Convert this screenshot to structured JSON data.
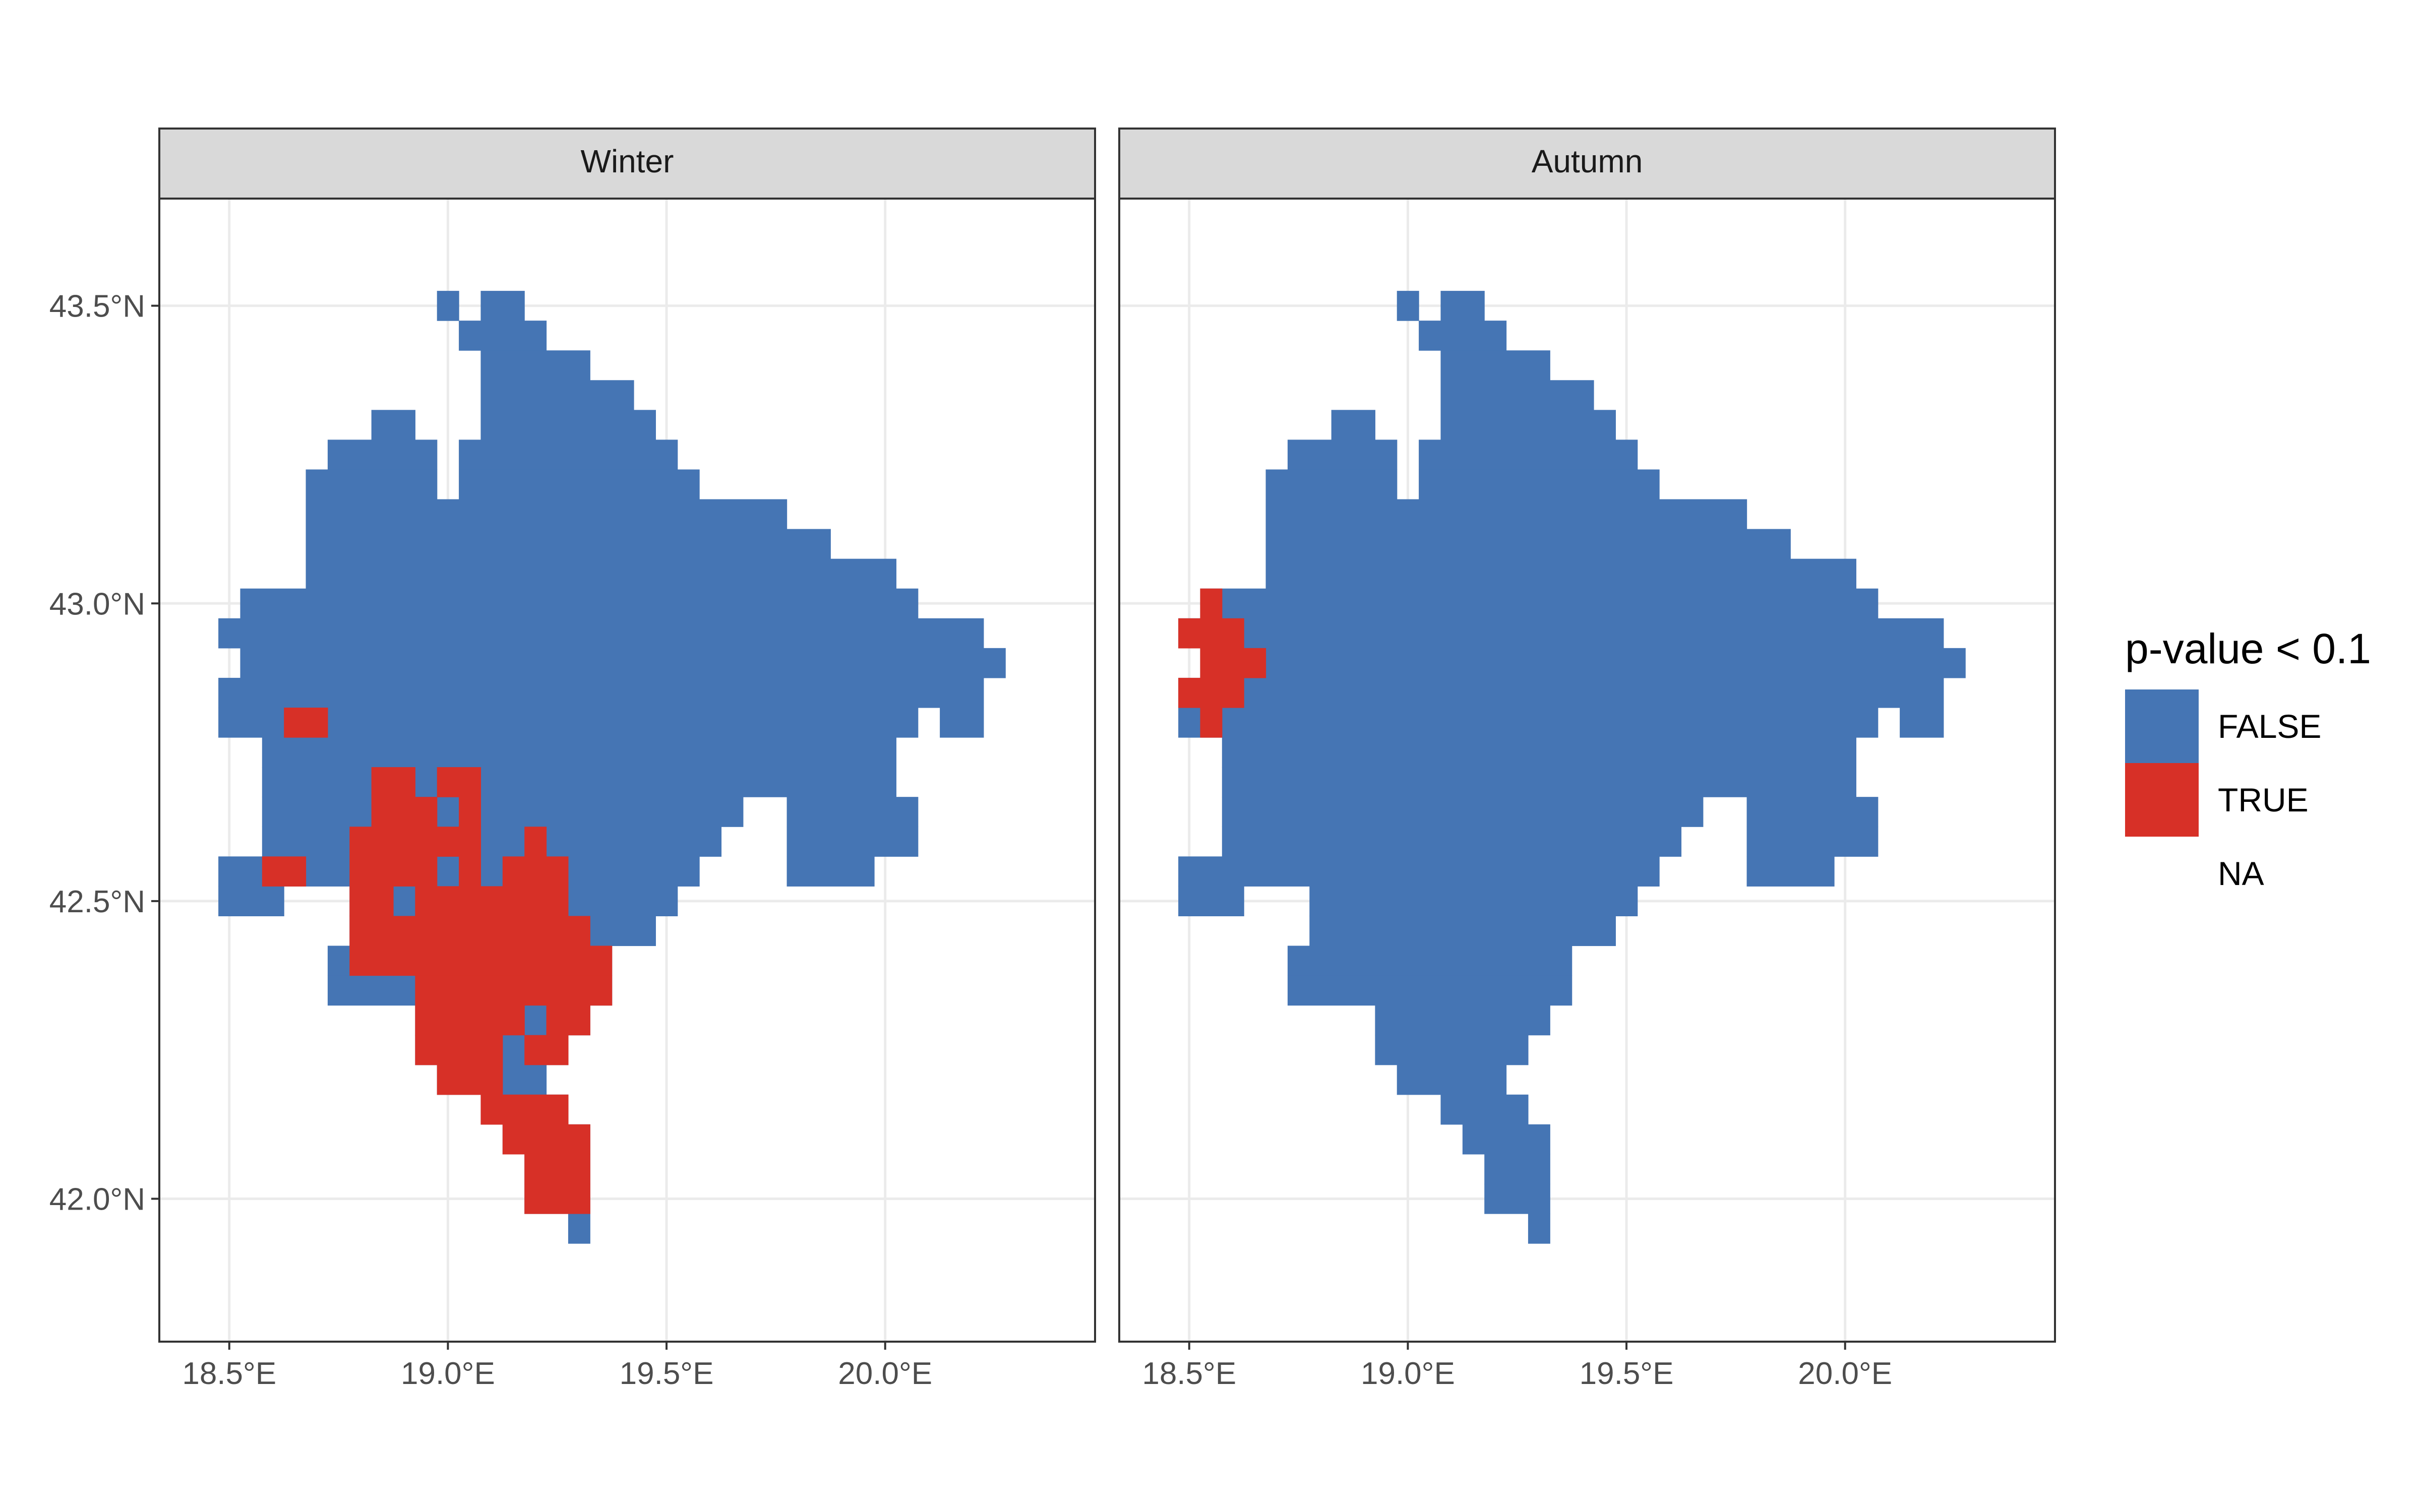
{
  "chart_data": {
    "type": "heatmap",
    "title": "",
    "xlabel": "",
    "ylabel": "",
    "xlim": [
      18.34,
      20.48
    ],
    "ylim": [
      41.76,
      43.68
    ],
    "x_ticks": [
      {
        "value": 18.5,
        "label": "18.5°E"
      },
      {
        "value": 19.0,
        "label": "19.0°E"
      },
      {
        "value": 19.5,
        "label": "19.5°E"
      },
      {
        "value": 20.0,
        "label": "20.0°E"
      }
    ],
    "y_ticks": [
      {
        "value": 42.0,
        "label": "42.0°N"
      },
      {
        "value": 42.5,
        "label": "42.5°N"
      },
      {
        "value": 43.0,
        "label": "43.0°N"
      },
      {
        "value": 43.5,
        "label": "43.5°N"
      }
    ],
    "grid": true,
    "cell_size_deg": 0.05,
    "legend": {
      "title": "p-value < 0.1",
      "position": "right",
      "entries": [
        {
          "label": "FALSE",
          "color": "#4575b4"
        },
        {
          "label": "TRUE",
          "color": "#d73027"
        },
        {
          "label": "NA",
          "color": "#ffffff"
        }
      ]
    },
    "panels": [
      {
        "facet": "Winter",
        "region_rows": [
          {
            "lat": 43.5,
            "lon_ranges": [
              [
                19.0,
                19.0
              ],
              [
                19.1,
                19.15
              ]
            ]
          },
          {
            "lat": 43.45,
            "lon_ranges": [
              [
                19.05,
                19.2
              ]
            ]
          },
          {
            "lat": 43.4,
            "lon_ranges": [
              [
                19.1,
                19.3
              ]
            ]
          },
          {
            "lat": 43.35,
            "lon_ranges": [
              [
                19.1,
                19.4
              ]
            ]
          },
          {
            "lat": 43.3,
            "lon_ranges": [
              [
                18.85,
                18.9
              ],
              [
                19.1,
                19.45
              ]
            ]
          },
          {
            "lat": 43.25,
            "lon_ranges": [
              [
                18.75,
                18.95
              ],
              [
                19.05,
                19.5
              ]
            ]
          },
          {
            "lat": 43.2,
            "lon_ranges": [
              [
                18.7,
                18.95
              ],
              [
                19.05,
                19.55
              ]
            ]
          },
          {
            "lat": 43.15,
            "lon_ranges": [
              [
                18.7,
                19.75
              ]
            ]
          },
          {
            "lat": 43.1,
            "lon_ranges": [
              [
                18.7,
                19.85
              ]
            ]
          },
          {
            "lat": 43.05,
            "lon_ranges": [
              [
                18.7,
                20.0
              ]
            ]
          },
          {
            "lat": 43.0,
            "lon_ranges": [
              [
                18.55,
                20.05
              ]
            ]
          },
          {
            "lat": 42.95,
            "lon_ranges": [
              [
                18.5,
                20.2
              ]
            ]
          },
          {
            "lat": 42.9,
            "lon_ranges": [
              [
                18.55,
                20.25
              ]
            ]
          },
          {
            "lat": 42.85,
            "lon_ranges": [
              [
                18.5,
                20.2
              ]
            ]
          },
          {
            "lat": 42.8,
            "lon_ranges": [
              [
                18.5,
                20.05
              ],
              [
                20.15,
                20.2
              ]
            ]
          },
          {
            "lat": 42.75,
            "lon_ranges": [
              [
                18.6,
                20.0
              ]
            ]
          },
          {
            "lat": 42.7,
            "lon_ranges": [
              [
                18.6,
                20.0
              ]
            ]
          },
          {
            "lat": 42.65,
            "lon_ranges": [
              [
                18.6,
                19.65
              ],
              [
                19.8,
                20.05
              ]
            ]
          },
          {
            "lat": 42.6,
            "lon_ranges": [
              [
                18.6,
                19.6
              ],
              [
                19.8,
                20.05
              ]
            ]
          },
          {
            "lat": 42.55,
            "lon_ranges": [
              [
                18.5,
                18.55
              ],
              [
                18.6,
                19.55
              ],
              [
                19.8,
                19.95
              ]
            ]
          },
          {
            "lat": 42.5,
            "lon_ranges": [
              [
                18.5,
                18.6
              ],
              [
                18.8,
                19.5
              ]
            ]
          },
          {
            "lat": 42.45,
            "lon_ranges": [
              [
                18.8,
                19.45
              ]
            ]
          },
          {
            "lat": 42.4,
            "lon_ranges": [
              [
                18.75,
                19.35
              ]
            ]
          },
          {
            "lat": 42.35,
            "lon_ranges": [
              [
                18.75,
                19.35
              ]
            ]
          },
          {
            "lat": 42.3,
            "lon_ranges": [
              [
                18.95,
                19.3
              ]
            ]
          },
          {
            "lat": 42.25,
            "lon_ranges": [
              [
                18.95,
                19.25
              ]
            ]
          },
          {
            "lat": 42.2,
            "lon_ranges": [
              [
                19.0,
                19.2
              ]
            ]
          },
          {
            "lat": 42.15,
            "lon_ranges": [
              [
                19.1,
                19.25
              ]
            ]
          },
          {
            "lat": 42.1,
            "lon_ranges": [
              [
                19.15,
                19.3
              ]
            ]
          },
          {
            "lat": 42.05,
            "lon_ranges": [
              [
                19.2,
                19.3
              ]
            ]
          },
          {
            "lat": 42.0,
            "lon_ranges": [
              [
                19.2,
                19.3
              ]
            ]
          },
          {
            "lat": 41.95,
            "lon_ranges": [
              [
                19.3,
                19.3
              ]
            ]
          }
        ],
        "true_rows": [
          {
            "lat": 42.8,
            "lon_ranges": [
              [
                18.65,
                18.7
              ]
            ]
          },
          {
            "lat": 42.7,
            "lon_ranges": [
              [
                18.85,
                18.9
              ],
              [
                19.0,
                19.05
              ]
            ]
          },
          {
            "lat": 42.65,
            "lon_ranges": [
              [
                18.85,
                18.95
              ],
              [
                19.05,
                19.05
              ]
            ]
          },
          {
            "lat": 42.6,
            "lon_ranges": [
              [
                18.8,
                19.05
              ],
              [
                19.2,
                19.2
              ]
            ]
          },
          {
            "lat": 42.55,
            "lon_ranges": [
              [
                18.6,
                18.65
              ],
              [
                18.8,
                18.95
              ],
              [
                19.05,
                19.05
              ],
              [
                19.15,
                19.25
              ]
            ]
          },
          {
            "lat": 42.5,
            "lon_ranges": [
              [
                18.8,
                18.85
              ],
              [
                18.95,
                19.25
              ]
            ]
          },
          {
            "lat": 42.45,
            "lon_ranges": [
              [
                18.8,
                19.3
              ]
            ]
          },
          {
            "lat": 42.4,
            "lon_ranges": [
              [
                18.8,
                18.85
              ],
              [
                18.9,
                19.35
              ]
            ]
          },
          {
            "lat": 42.35,
            "lon_ranges": [
              [
                18.95,
                19.35
              ]
            ]
          },
          {
            "lat": 42.3,
            "lon_ranges": [
              [
                18.95,
                19.15
              ],
              [
                19.25,
                19.3
              ]
            ]
          },
          {
            "lat": 42.25,
            "lon_ranges": [
              [
                18.95,
                19.1
              ],
              [
                19.2,
                19.25
              ]
            ]
          },
          {
            "lat": 42.2,
            "lon_ranges": [
              [
                19.0,
                19.1
              ]
            ]
          },
          {
            "lat": 42.15,
            "lon_ranges": [
              [
                19.1,
                19.25
              ]
            ]
          },
          {
            "lat": 42.1,
            "lon_ranges": [
              [
                19.15,
                19.3
              ]
            ]
          },
          {
            "lat": 42.05,
            "lon_ranges": [
              [
                19.2,
                19.3
              ]
            ]
          },
          {
            "lat": 42.0,
            "lon_ranges": [
              [
                19.2,
                19.3
              ]
            ]
          }
        ]
      },
      {
        "facet": "Autumn",
        "region_rows": [
          {
            "lat": 43.5,
            "lon_ranges": [
              [
                19.0,
                19.0
              ],
              [
                19.1,
                19.15
              ]
            ]
          },
          {
            "lat": 43.45,
            "lon_ranges": [
              [
                19.05,
                19.2
              ]
            ]
          },
          {
            "lat": 43.4,
            "lon_ranges": [
              [
                19.1,
                19.3
              ]
            ]
          },
          {
            "lat": 43.35,
            "lon_ranges": [
              [
                19.1,
                19.4
              ]
            ]
          },
          {
            "lat": 43.3,
            "lon_ranges": [
              [
                18.85,
                18.9
              ],
              [
                19.1,
                19.45
              ]
            ]
          },
          {
            "lat": 43.25,
            "lon_ranges": [
              [
                18.75,
                18.95
              ],
              [
                19.05,
                19.5
              ]
            ]
          },
          {
            "lat": 43.2,
            "lon_ranges": [
              [
                18.7,
                18.95
              ],
              [
                19.05,
                19.55
              ]
            ]
          },
          {
            "lat": 43.15,
            "lon_ranges": [
              [
                18.7,
                19.75
              ]
            ]
          },
          {
            "lat": 43.1,
            "lon_ranges": [
              [
                18.7,
                19.85
              ]
            ]
          },
          {
            "lat": 43.05,
            "lon_ranges": [
              [
                18.7,
                20.0
              ]
            ]
          },
          {
            "lat": 43.0,
            "lon_ranges": [
              [
                18.55,
                20.05
              ]
            ]
          },
          {
            "lat": 42.95,
            "lon_ranges": [
              [
                18.5,
                20.2
              ]
            ]
          },
          {
            "lat": 42.9,
            "lon_ranges": [
              [
                18.55,
                20.25
              ]
            ]
          },
          {
            "lat": 42.85,
            "lon_ranges": [
              [
                18.5,
                20.2
              ]
            ]
          },
          {
            "lat": 42.8,
            "lon_ranges": [
              [
                18.5,
                20.05
              ],
              [
                20.15,
                20.2
              ]
            ]
          },
          {
            "lat": 42.75,
            "lon_ranges": [
              [
                18.6,
                20.0
              ]
            ]
          },
          {
            "lat": 42.7,
            "lon_ranges": [
              [
                18.6,
                20.0
              ]
            ]
          },
          {
            "lat": 42.65,
            "lon_ranges": [
              [
                18.6,
                19.65
              ],
              [
                19.8,
                20.05
              ]
            ]
          },
          {
            "lat": 42.6,
            "lon_ranges": [
              [
                18.6,
                19.6
              ],
              [
                19.8,
                20.05
              ]
            ]
          },
          {
            "lat": 42.55,
            "lon_ranges": [
              [
                18.5,
                18.55
              ],
              [
                18.6,
                19.55
              ],
              [
                19.8,
                19.95
              ]
            ]
          },
          {
            "lat": 42.5,
            "lon_ranges": [
              [
                18.5,
                18.6
              ],
              [
                18.8,
                19.5
              ]
            ]
          },
          {
            "lat": 42.45,
            "lon_ranges": [
              [
                18.8,
                19.45
              ]
            ]
          },
          {
            "lat": 42.4,
            "lon_ranges": [
              [
                18.75,
                19.35
              ]
            ]
          },
          {
            "lat": 42.35,
            "lon_ranges": [
              [
                18.75,
                19.35
              ]
            ]
          },
          {
            "lat": 42.3,
            "lon_ranges": [
              [
                18.95,
                19.3
              ]
            ]
          },
          {
            "lat": 42.25,
            "lon_ranges": [
              [
                18.95,
                19.25
              ]
            ]
          },
          {
            "lat": 42.2,
            "lon_ranges": [
              [
                19.0,
                19.2
              ]
            ]
          },
          {
            "lat": 42.15,
            "lon_ranges": [
              [
                19.1,
                19.25
              ]
            ]
          },
          {
            "lat": 42.1,
            "lon_ranges": [
              [
                19.15,
                19.3
              ]
            ]
          },
          {
            "lat": 42.05,
            "lon_ranges": [
              [
                19.2,
                19.3
              ]
            ]
          },
          {
            "lat": 42.0,
            "lon_ranges": [
              [
                19.2,
                19.3
              ]
            ]
          },
          {
            "lat": 41.95,
            "lon_ranges": [
              [
                19.3,
                19.3
              ]
            ]
          }
        ],
        "true_rows": [
          {
            "lat": 43.0,
            "lon_ranges": [
              [
                18.55,
                18.55
              ]
            ]
          },
          {
            "lat": 42.95,
            "lon_ranges": [
              [
                18.5,
                18.6
              ]
            ]
          },
          {
            "lat": 42.9,
            "lon_ranges": [
              [
                18.55,
                18.65
              ]
            ]
          },
          {
            "lat": 42.85,
            "lon_ranges": [
              [
                18.5,
                18.6
              ]
            ]
          },
          {
            "lat": 42.8,
            "lon_ranges": [
              [
                18.55,
                18.55
              ]
            ]
          }
        ]
      }
    ]
  }
}
